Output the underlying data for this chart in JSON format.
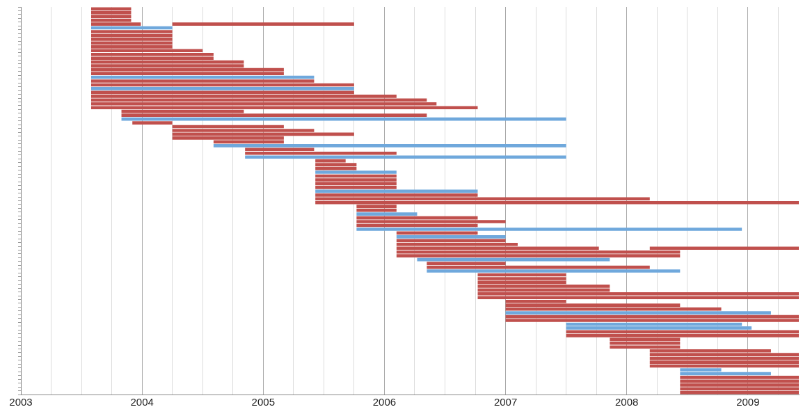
{
  "chart_data": {
    "type": "bar",
    "orientation": "horizontal",
    "grid": "x",
    "legend": false,
    "tick_labels": "x",
    "categories": [
      null,
      null,
      null,
      null,
      null,
      null,
      null,
      null,
      null,
      null,
      null,
      null,
      null,
      null,
      null,
      null,
      null,
      null,
      null,
      null,
      null,
      null,
      null,
      null,
      null,
      null,
      null,
      null,
      null,
      null,
      null,
      null,
      null,
      null,
      null,
      null,
      null,
      null,
      null,
      null,
      null,
      null,
      null,
      null,
      null,
      null,
      null,
      null,
      null,
      null,
      null,
      null,
      null,
      null,
      null,
      null,
      null,
      null,
      null,
      null,
      null,
      null,
      null,
      null,
      null,
      null,
      null,
      null,
      null,
      null,
      null,
      null,
      null,
      null,
      null,
      null,
      null,
      null,
      null,
      null,
      null,
      null,
      null,
      null,
      null,
      null,
      null,
      null,
      null,
      null,
      null,
      null,
      null,
      null,
      null,
      null,
      null,
      null,
      null,
      null,
      null,
      null
    ],
    "xlim": [
      2003,
      2009.42
    ],
    "xticks": [
      2003,
      {
        "value": 2003.25,
        "label": null
      },
      {
        "value": 2003.5,
        "label": null
      },
      {
        "value": 2003.75,
        "label": null
      },
      2004,
      {
        "value": 2004.25,
        "label": null
      },
      {
        "value": 2004.5,
        "label": null
      },
      {
        "value": 2004.75,
        "label": null
      },
      2005,
      {
        "value": 2005.25,
        "label": null
      },
      {
        "value": 2005.5,
        "label": null
      },
      {
        "value": 2005.75,
        "label": null
      },
      2006,
      {
        "value": 2006.25,
        "label": null
      },
      {
        "value": 2006.5,
        "label": null
      },
      {
        "value": 2006.75,
        "label": null
      },
      2007,
      {
        "value": 2007.25,
        "label": null
      },
      {
        "value": 2007.5,
        "label": null
      },
      {
        "value": 2007.75,
        "label": null
      },
      2008,
      {
        "value": 2008.25,
        "label": null
      },
      {
        "value": 2008.5,
        "label": null
      },
      {
        "value": 2008.75,
        "label": null
      },
      2009,
      {
        "value": 2009.25,
        "label": null
      }
    ],
    "series": [
      {
        "color": "#c0504d",
        "base": [
          2003.58,
          2003.58,
          2003.58,
          2003.58,
          2003.58,
          null,
          2003.58,
          2003.58,
          2003.58,
          2003.58,
          2003.58,
          2003.58,
          2003.58,
          2003.58,
          2003.58,
          2003.58,
          2003.58,
          2003.58,
          null,
          2003.58,
          2003.58,
          null,
          2003.58,
          2003.58,
          2003.58,
          2003.58,
          2003.58,
          2003.83,
          2003.83,
          null,
          2003.92,
          2004.25,
          2004.25,
          2004.25,
          2004.25,
          2004.59,
          null,
          2004.85,
          2004.85,
          null,
          2005.43,
          2005.43,
          2005.43,
          null,
          2005.43,
          2005.43,
          2005.43,
          2005.43,
          null,
          2005.43,
          2005.43,
          2005.43,
          2005.77,
          2005.77,
          null,
          2005.77,
          2005.77,
          2005.77,
          null,
          2006.1,
          null,
          2006.1,
          2006.1,
          2006.1,
          2006.1,
          2006.1,
          null,
          2006.35,
          2006.35,
          null,
          2006.77,
          2006.77,
          2006.77,
          2006.77,
          2006.77,
          2006.77,
          2006.77,
          2007,
          2007,
          2007,
          null,
          2007,
          2007,
          null,
          null,
          2007.5,
          2007.5,
          2007.86,
          2007.86,
          2007.86,
          2008.19,
          2008.19,
          2008.19,
          2008.19,
          2008.19,
          null,
          null,
          2008.44,
          2008.44,
          2008.44,
          2008.44,
          2008.44
        ],
        "values": [
          0.33,
          0.33,
          0.33,
          0.33,
          0.41,
          null,
          0.67,
          0.67,
          0.67,
          0.67,
          0.67,
          0.92,
          1.01,
          1.01,
          1.26,
          1.26,
          1.59,
          1.59,
          null,
          1.84,
          2.17,
          null,
          2.17,
          2.52,
          2.77,
          2.85,
          3.19,
          1.01,
          2.52,
          null,
          0.33,
          0.92,
          1.17,
          1.5,
          0.92,
          0.58,
          null,
          0.57,
          1.25,
          null,
          0.25,
          0.34,
          0.34,
          null,
          0.67,
          0.67,
          0.67,
          0.67,
          null,
          1.34,
          2.76,
          3.99,
          0.33,
          0.33,
          null,
          1,
          1.23,
          1,
          null,
          0.67,
          null,
          0.9,
          1,
          1.67,
          2.34,
          2.34,
          null,
          0.65,
          1.84,
          null,
          0.73,
          0.73,
          0.73,
          1.09,
          1.09,
          2.65,
          2.65,
          0.5,
          1.44,
          1.78,
          null,
          2.42,
          2.42,
          null,
          null,
          1.92,
          1.92,
          0.58,
          0.58,
          0.58,
          1,
          1.23,
          1.23,
          1.23,
          1.23,
          null,
          null,
          0.98,
          0.98,
          0.98,
          0.98,
          0.98
        ]
      },
      {
        "color": "#6fa8dc",
        "base": [
          null,
          null,
          null,
          null,
          null,
          2003.58,
          null,
          null,
          null,
          null,
          null,
          null,
          null,
          null,
          null,
          null,
          null,
          null,
          2003.58,
          null,
          null,
          2003.58,
          null,
          null,
          null,
          null,
          null,
          null,
          null,
          2003.83,
          null,
          null,
          null,
          null,
          null,
          null,
          2004.59,
          null,
          null,
          2004.85,
          null,
          null,
          null,
          2005.43,
          null,
          null,
          null,
          null,
          2005.43,
          null,
          null,
          null,
          null,
          null,
          2005.77,
          null,
          null,
          null,
          2005.77,
          null,
          2006.1,
          null,
          null,
          null,
          null,
          null,
          2006.27,
          null,
          null,
          2006.35,
          null,
          null,
          null,
          null,
          null,
          null,
          null,
          null,
          null,
          null,
          2007,
          null,
          null,
          2007.5,
          2007.5,
          null,
          null,
          null,
          null,
          null,
          null,
          null,
          null,
          null,
          null,
          2008.44,
          2008.44,
          null,
          null,
          null,
          null,
          null
        ],
        "values": [
          null,
          null,
          null,
          null,
          null,
          0.67,
          null,
          null,
          null,
          null,
          null,
          null,
          null,
          null,
          null,
          null,
          null,
          null,
          1.84,
          null,
          null,
          2.17,
          null,
          null,
          null,
          null,
          null,
          null,
          null,
          3.67,
          null,
          null,
          null,
          null,
          null,
          null,
          2.91,
          null,
          null,
          2.65,
          null,
          null,
          null,
          0.67,
          null,
          null,
          null,
          null,
          1.34,
          null,
          null,
          null,
          null,
          null,
          0.5,
          null,
          null,
          null,
          3.18,
          null,
          0.9,
          null,
          null,
          null,
          null,
          null,
          1.59,
          null,
          null,
          2.09,
          null,
          null,
          null,
          null,
          null,
          null,
          null,
          null,
          null,
          null,
          2.19,
          null,
          null,
          1.45,
          1.53,
          null,
          null,
          null,
          null,
          null,
          null,
          null,
          null,
          null,
          null,
          0.34,
          0.75,
          null,
          null,
          null,
          null,
          null
        ]
      },
      {
        "color": "#c0504d",
        "base": [
          null,
          null,
          null,
          null,
          2004.25,
          null,
          null,
          null,
          null,
          null,
          null,
          null,
          null,
          null,
          null,
          null,
          null,
          null,
          null,
          null,
          null,
          null,
          null,
          null,
          null,
          null,
          null,
          null,
          null,
          null,
          null,
          null,
          null,
          null,
          null,
          null,
          null,
          null,
          null,
          null,
          null,
          null,
          null,
          null,
          null,
          null,
          null,
          null,
          null,
          null,
          null,
          null,
          null,
          null,
          null,
          null,
          null,
          null,
          null,
          null,
          null,
          null,
          null,
          2008.19,
          null,
          null,
          null,
          null,
          null,
          null,
          null,
          null,
          null,
          null,
          null,
          null,
          null,
          null,
          null,
          null,
          null,
          null,
          null,
          null,
          null,
          null,
          null,
          null,
          null,
          null,
          null,
          null,
          null,
          null,
          null,
          null,
          null,
          null,
          null,
          null,
          null,
          null
        ],
        "values": [
          null,
          null,
          null,
          null,
          1.5,
          null,
          null,
          null,
          null,
          null,
          null,
          null,
          null,
          null,
          null,
          null,
          null,
          null,
          null,
          null,
          null,
          null,
          null,
          null,
          null,
          null,
          null,
          null,
          null,
          null,
          null,
          null,
          null,
          null,
          null,
          null,
          null,
          null,
          null,
          null,
          null,
          null,
          null,
          null,
          null,
          null,
          null,
          null,
          null,
          null,
          null,
          null,
          null,
          null,
          null,
          null,
          null,
          null,
          null,
          null,
          null,
          null,
          null,
          1.23,
          null,
          null,
          null,
          null,
          null,
          null,
          null,
          null,
          null,
          null,
          null,
          null,
          null,
          null,
          null,
          null,
          null,
          null,
          null,
          null,
          null,
          null,
          null,
          null,
          null,
          null,
          null,
          null,
          null,
          null,
          null,
          null,
          null,
          null,
          null,
          null,
          null,
          null
        ]
      }
    ]
  }
}
